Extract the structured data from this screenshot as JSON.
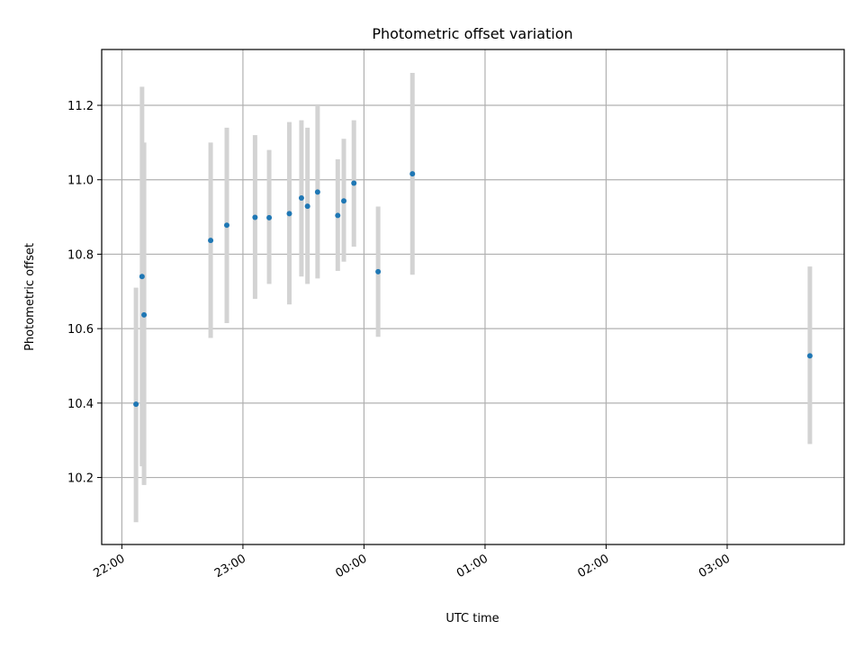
{
  "chart_data": {
    "type": "scatter",
    "title": "Photometric offset variation",
    "xlabel": "UTC time",
    "ylabel": "Photometric offset",
    "x_ticks": [
      "22:00",
      "23:00",
      "00:00",
      "01:00",
      "02:00",
      "03:00"
    ],
    "y_ticks": [
      "10.2",
      "10.4",
      "10.6",
      "10.8",
      "11.0",
      "11.2"
    ],
    "xlim": [
      "21:50",
      "03:58"
    ],
    "ylim": [
      10.02,
      11.35
    ],
    "grid": true,
    "point_color": "#1f77b4",
    "errorbar_color": "#d3d3d3",
    "points": [
      {
        "x": "22:07",
        "y": 10.397,
        "ylow": 10.08,
        "yhigh": 10.71
      },
      {
        "x": "22:10",
        "y": 10.74,
        "ylow": 10.23,
        "yhigh": 11.25
      },
      {
        "x": "22:11",
        "y": 10.637,
        "ylow": 10.18,
        "yhigh": 11.1
      },
      {
        "x": "22:44",
        "y": 10.837,
        "ylow": 10.575,
        "yhigh": 11.1
      },
      {
        "x": "22:52",
        "y": 10.878,
        "ylow": 10.615,
        "yhigh": 11.14
      },
      {
        "x": "23:06",
        "y": 10.899,
        "ylow": 10.68,
        "yhigh": 11.12
      },
      {
        "x": "23:13",
        "y": 10.898,
        "ylow": 10.72,
        "yhigh": 11.08
      },
      {
        "x": "23:23",
        "y": 10.909,
        "ylow": 10.665,
        "yhigh": 11.155
      },
      {
        "x": "23:29",
        "y": 10.951,
        "ylow": 10.74,
        "yhigh": 11.16
      },
      {
        "x": "23:32",
        "y": 10.929,
        "ylow": 10.72,
        "yhigh": 11.14
      },
      {
        "x": "23:37",
        "y": 10.967,
        "ylow": 10.735,
        "yhigh": 11.2
      },
      {
        "x": "23:47",
        "y": 10.904,
        "ylow": 10.755,
        "yhigh": 11.055
      },
      {
        "x": "23:50",
        "y": 10.943,
        "ylow": 10.78,
        "yhigh": 11.11
      },
      {
        "x": "23:55",
        "y": 10.991,
        "ylow": 10.82,
        "yhigh": 11.16
      },
      {
        "x": "00:07",
        "y": 10.753,
        "ylow": 10.578,
        "yhigh": 10.928
      },
      {
        "x": "00:24",
        "y": 11.016,
        "ylow": 10.745,
        "yhigh": 11.287
      },
      {
        "x": "03:41",
        "y": 10.527,
        "ylow": 10.29,
        "yhigh": 10.767
      }
    ]
  }
}
